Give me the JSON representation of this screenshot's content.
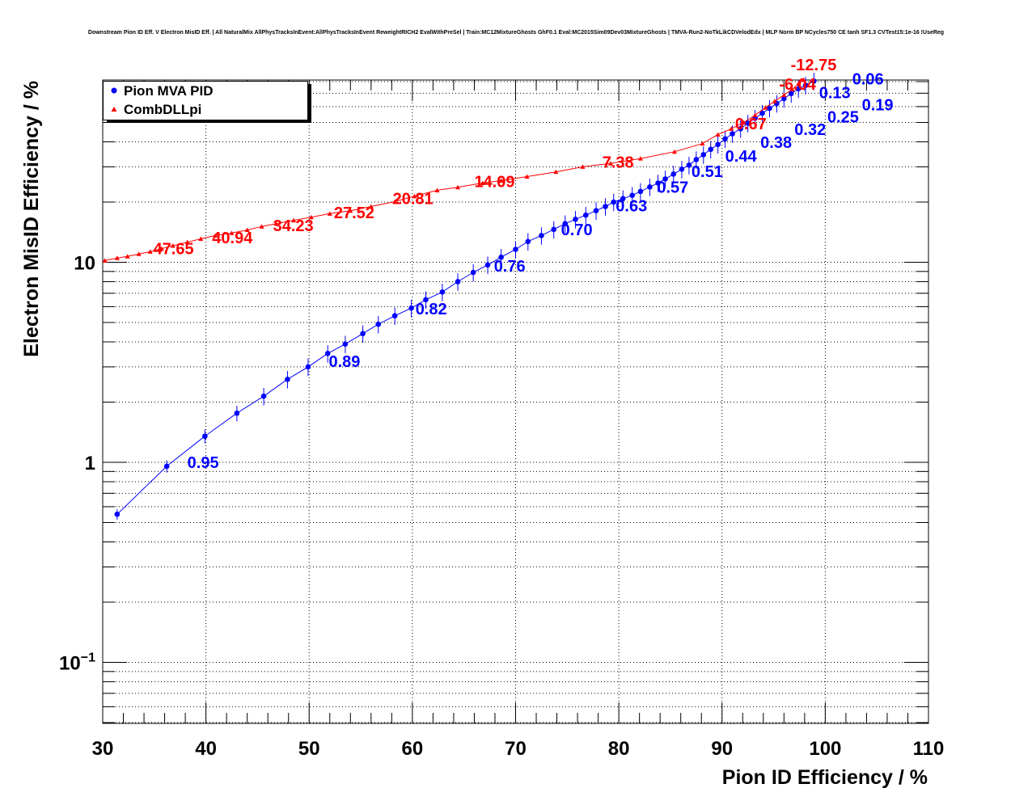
{
  "chart_data": {
    "type": "scatter",
    "title": "Downstream Pion ID Eff. V Electron MisID Eff. | All NaturalMix AllPhysTracksInEvent:AllPhysTracksInEvent ReweightRICH2 EvalWithPreSel | Train:MC12MixtureGhosts GhF0.1 Eval:MC2015Sim09Dev03MixtureGhosts | TMVA-Run2-NoTkLikCDVelodEdx | MLP Norm BP NCycles750 CE tanh SF1.3 CVTest15:1e-16 !UseReg",
    "xlabel": "Pion ID Efficiency / %",
    "ylabel": "Electron MisID Efficiency / %",
    "xlim": [
      30,
      110
    ],
    "ylim": [
      0.05,
      82
    ],
    "yscale": "log",
    "grid": true,
    "x_ticks": [
      "30",
      "40",
      "50",
      "60",
      "70",
      "80",
      "90",
      "100",
      "110"
    ],
    "y_ticks": [
      {
        "value": 10,
        "label": "10"
      },
      {
        "value": 1,
        "label": "1"
      },
      {
        "value": 0.1,
        "label": "10",
        "exp": "−1"
      }
    ],
    "legend": {
      "placement": "top-left",
      "entries": [
        "Pion MVA PID",
        "CombDLLpi"
      ]
    },
    "series": [
      {
        "name": "Pion MVA PID",
        "color": "#0000ff",
        "marker": "circle",
        "x": [
          31.4,
          36.2,
          39.9,
          43.0,
          45.6,
          47.9,
          49.9,
          51.8,
          53.5,
          55.2,
          56.7,
          58.3,
          59.9,
          61.3,
          62.9,
          64.4,
          65.9,
          67.3,
          68.6,
          70.0,
          71.2,
          72.5,
          73.7,
          74.8,
          75.8,
          76.8,
          77.8,
          78.7,
          79.5,
          80.4,
          81.3,
          82.1,
          83.0,
          83.8,
          84.5,
          85.3,
          86.1,
          86.8,
          87.5,
          88.2,
          88.9,
          89.6,
          90.3,
          91.0,
          91.8,
          92.5,
          93.2,
          93.9,
          94.6,
          95.3,
          96.0,
          96.7,
          97.4,
          98.1,
          98.9
        ],
        "y": [
          0.55,
          0.955,
          1.35,
          1.76,
          2.14,
          2.6,
          3.0,
          3.5,
          3.9,
          4.4,
          4.9,
          5.4,
          5.9,
          6.5,
          7.1,
          8.0,
          8.9,
          9.7,
          10.6,
          11.6,
          12.7,
          13.6,
          14.6,
          15.6,
          16.4,
          17.2,
          18.1,
          19.0,
          20.0,
          20.8,
          21.6,
          22.6,
          23.8,
          24.9,
          26.1,
          27.6,
          29.2,
          30.6,
          32.6,
          34.5,
          36.7,
          38.8,
          41.4,
          43.9,
          46.5,
          49.6,
          52.5,
          55.6,
          58.8,
          62.2,
          65.8,
          69.7,
          73.7,
          76.8,
          80.5
        ],
        "yerr": [
          0.06,
          0.07,
          0.08,
          0.09,
          0.1,
          0.1,
          0.1,
          0.1,
          0.1,
          0.1,
          0.1,
          0.1,
          0.1,
          0.1,
          0.1,
          0.1,
          0.1,
          0.1,
          0.1,
          0.1,
          0.1,
          0.1,
          0.1,
          0.1,
          0.1,
          0.1,
          0.1,
          0.1,
          0.1,
          0.1,
          0.1,
          0.1,
          0.1,
          0.1,
          0.1,
          0.1,
          0.1,
          0.1,
          0.1,
          0.1,
          0.1,
          0.1,
          0.1,
          0.1,
          0.1,
          0.1,
          0.1,
          0.1,
          0.1,
          0.1,
          0.1,
          0.1,
          0.1,
          0.1,
          0.1
        ],
        "labels": [
          {
            "x": 38.2,
            "y": 1.0,
            "text": "0.95"
          },
          {
            "x": 51.9,
            "y": 3.2,
            "text": "0.89"
          },
          {
            "x": 60.3,
            "y": 5.86,
            "text": "0.82"
          },
          {
            "x": 67.9,
            "y": 9.6,
            "text": "0.76"
          },
          {
            "x": 74.4,
            "y": 14.6,
            "text": "0.70"
          },
          {
            "x": 79.7,
            "y": 19.2,
            "text": "0.63"
          },
          {
            "x": 83.7,
            "y": 23.7,
            "text": "0.57"
          },
          {
            "x": 86.8,
            "y": 28.5,
            "text": "0.51"
          },
          {
            "x": 89.6,
            "y": 34.0,
            "text": "0.44"
          },
          {
            "x": 91.6,
            "y": 39.8,
            "text": "0.38"
          },
          {
            "x": 94.9,
            "y": 46.1,
            "text": "0.32"
          },
          {
            "x": 95.5,
            "y": 53.4,
            "text": "0.25"
          },
          {
            "x": 97.2,
            "y": 61.4,
            "text": "0.19"
          },
          {
            "x": 99.4,
            "y": 70.5,
            "text": "0.13"
          },
          {
            "x": 101.2,
            "y": 82.7,
            "text": "0.06"
          }
        ]
      },
      {
        "name": "CombDLLpi",
        "color": "#ff0000",
        "marker": "triangle",
        "x": [
          30.2,
          31.4,
          32.4,
          33.5,
          34.6,
          35.7,
          36.8,
          38.2,
          39.5,
          40.9,
          42.5,
          44.0,
          45.4,
          46.8,
          48.5,
          50.2,
          52.0,
          54.0,
          56.0,
          58.3,
          60.2,
          62.4,
          64.4,
          66.8,
          68.6,
          71.1,
          73.9,
          76.5,
          79.2,
          82.1,
          85.4,
          88.1,
          89.6,
          90.9,
          92.1,
          93.2,
          94.2,
          95.1,
          96.0,
          96.8,
          97.4,
          97.9
        ],
        "y": [
          10.2,
          10.5,
          10.7,
          11.0,
          11.3,
          11.7,
          12.1,
          12.6,
          13.1,
          13.6,
          14.0,
          14.5,
          15.1,
          15.6,
          16.2,
          16.8,
          17.5,
          18.1,
          19.0,
          20.1,
          21.4,
          22.9,
          23.7,
          24.9,
          25.6,
          26.8,
          28.3,
          30.0,
          31.2,
          33.0,
          35.7,
          39.2,
          43.5,
          46.5,
          50.0,
          54.4,
          59.3,
          63.8,
          68.6,
          73.2,
          78.1,
          81.6
        ],
        "labels": [
          {
            "x": 34.9,
            "y": 11.7,
            "text": "47.65"
          },
          {
            "x": 40.6,
            "y": 13.3,
            "text": "40.94"
          },
          {
            "x": 46.5,
            "y": 15.3,
            "text": "34.23"
          },
          {
            "x": 52.4,
            "y": 17.7,
            "text": "27.52"
          },
          {
            "x": 58.1,
            "y": 20.9,
            "text": "20.81"
          },
          {
            "x": 66.0,
            "y": 25.3,
            "text": "14.09"
          },
          {
            "x": 78.4,
            "y": 31.7,
            "text": "7.38"
          },
          {
            "x": 92.2,
            "y": 47.5,
            "text": "0.67"
          },
          {
            "x": 97.4,
            "y": 72.3,
            "text": "-6.04"
          },
          {
            "x": 99.0,
            "y": 88.7,
            "text": "-12.75"
          }
        ]
      }
    ]
  }
}
